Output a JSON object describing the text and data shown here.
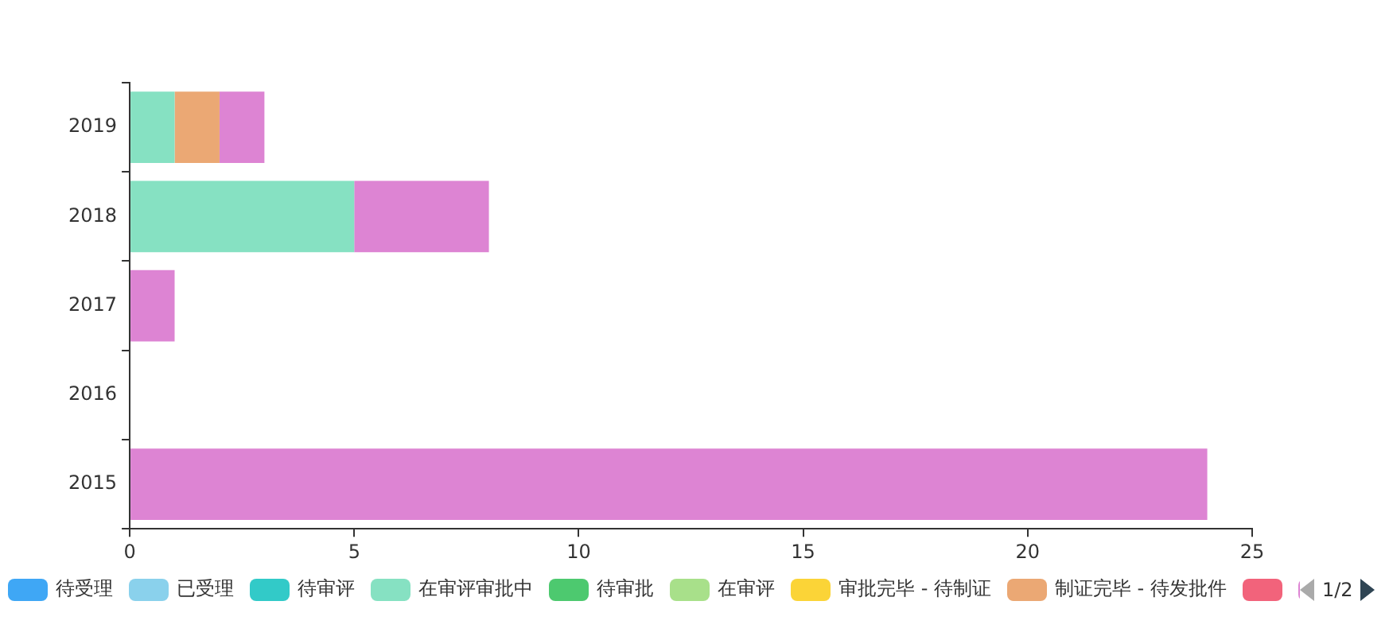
{
  "chart_data": {
    "type": "bar",
    "orientation": "horizontal",
    "stacked": true,
    "categories": [
      "2019",
      "2018",
      "2017",
      "2016",
      "2015"
    ],
    "series": [
      {
        "name": "待受理",
        "color": "#3fa7f5",
        "values": [
          null,
          null,
          null,
          null,
          null
        ]
      },
      {
        "name": "已受理",
        "color": "#8ad1ec",
        "values": [
          null,
          null,
          null,
          null,
          null
        ]
      },
      {
        "name": "待审评",
        "color": "#32cac8",
        "values": [
          null,
          null,
          null,
          null,
          null
        ]
      },
      {
        "name": "在审评审批中",
        "color": "#86e1c2",
        "values": [
          1,
          5,
          null,
          null,
          null
        ]
      },
      {
        "name": "待审批",
        "color": "#4dc96f",
        "values": [
          null,
          null,
          null,
          null,
          null
        ]
      },
      {
        "name": "在审评",
        "color": "#a8e08a",
        "values": [
          null,
          null,
          null,
          null,
          null
        ]
      },
      {
        "name": "审批完毕 - 待制证",
        "color": "#fbd437",
        "values": [
          null,
          null,
          null,
          null,
          null
        ]
      },
      {
        "name": "制证完毕 - 待发批件",
        "color": "#eba874",
        "values": [
          1,
          null,
          null,
          null,
          null
        ]
      },
      {
        "color": "#f2637b",
        "values": [
          null,
          null,
          null,
          null,
          null
        ]
      },
      {
        "color": "#dd84d3",
        "values": [
          1,
          3,
          1,
          null,
          24
        ]
      }
    ],
    "xlim": [
      0,
      25
    ],
    "xticks": [
      0,
      5,
      10,
      15,
      20,
      25
    ],
    "grid": false,
    "legend": "bottom",
    "annotations": [
      "1/2"
    ]
  }
}
